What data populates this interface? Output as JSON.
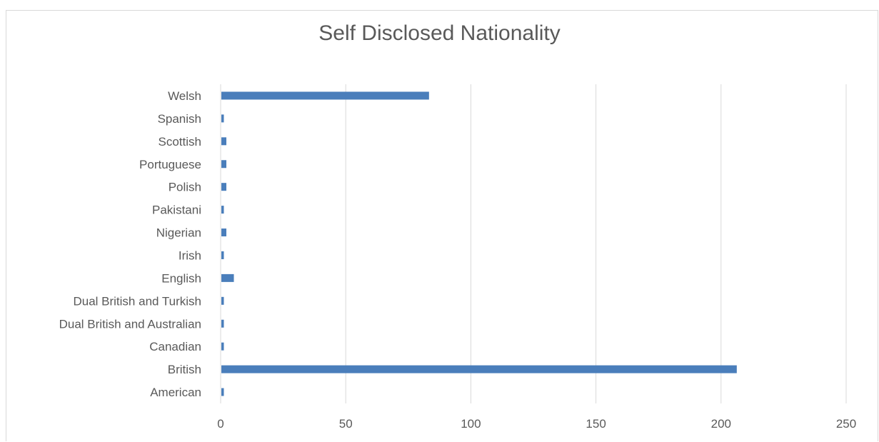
{
  "chart_data": {
    "type": "bar",
    "orientation": "horizontal",
    "title": "Self Disclosed Nationality",
    "xlabel": "",
    "ylabel": "",
    "categories": [
      "American",
      "British",
      "Canadian",
      "Dual British and Australian",
      "Dual British and Turkish",
      "English",
      "Irish",
      "Nigerian",
      "Pakistani",
      "Polish",
      "Portuguese",
      "Scottish",
      "Spanish",
      "Welsh"
    ],
    "values": [
      1,
      206,
      1,
      1,
      1,
      5,
      1,
      2,
      1,
      2,
      2,
      2,
      1,
      83
    ],
    "xlim": [
      0,
      250
    ],
    "xticks": [
      0,
      50,
      100,
      150,
      200,
      250
    ],
    "grid": true,
    "legend": "none",
    "bar_color": "#4a7ebb",
    "grid_color": "#d9d9d9",
    "text_color": "#595959"
  }
}
